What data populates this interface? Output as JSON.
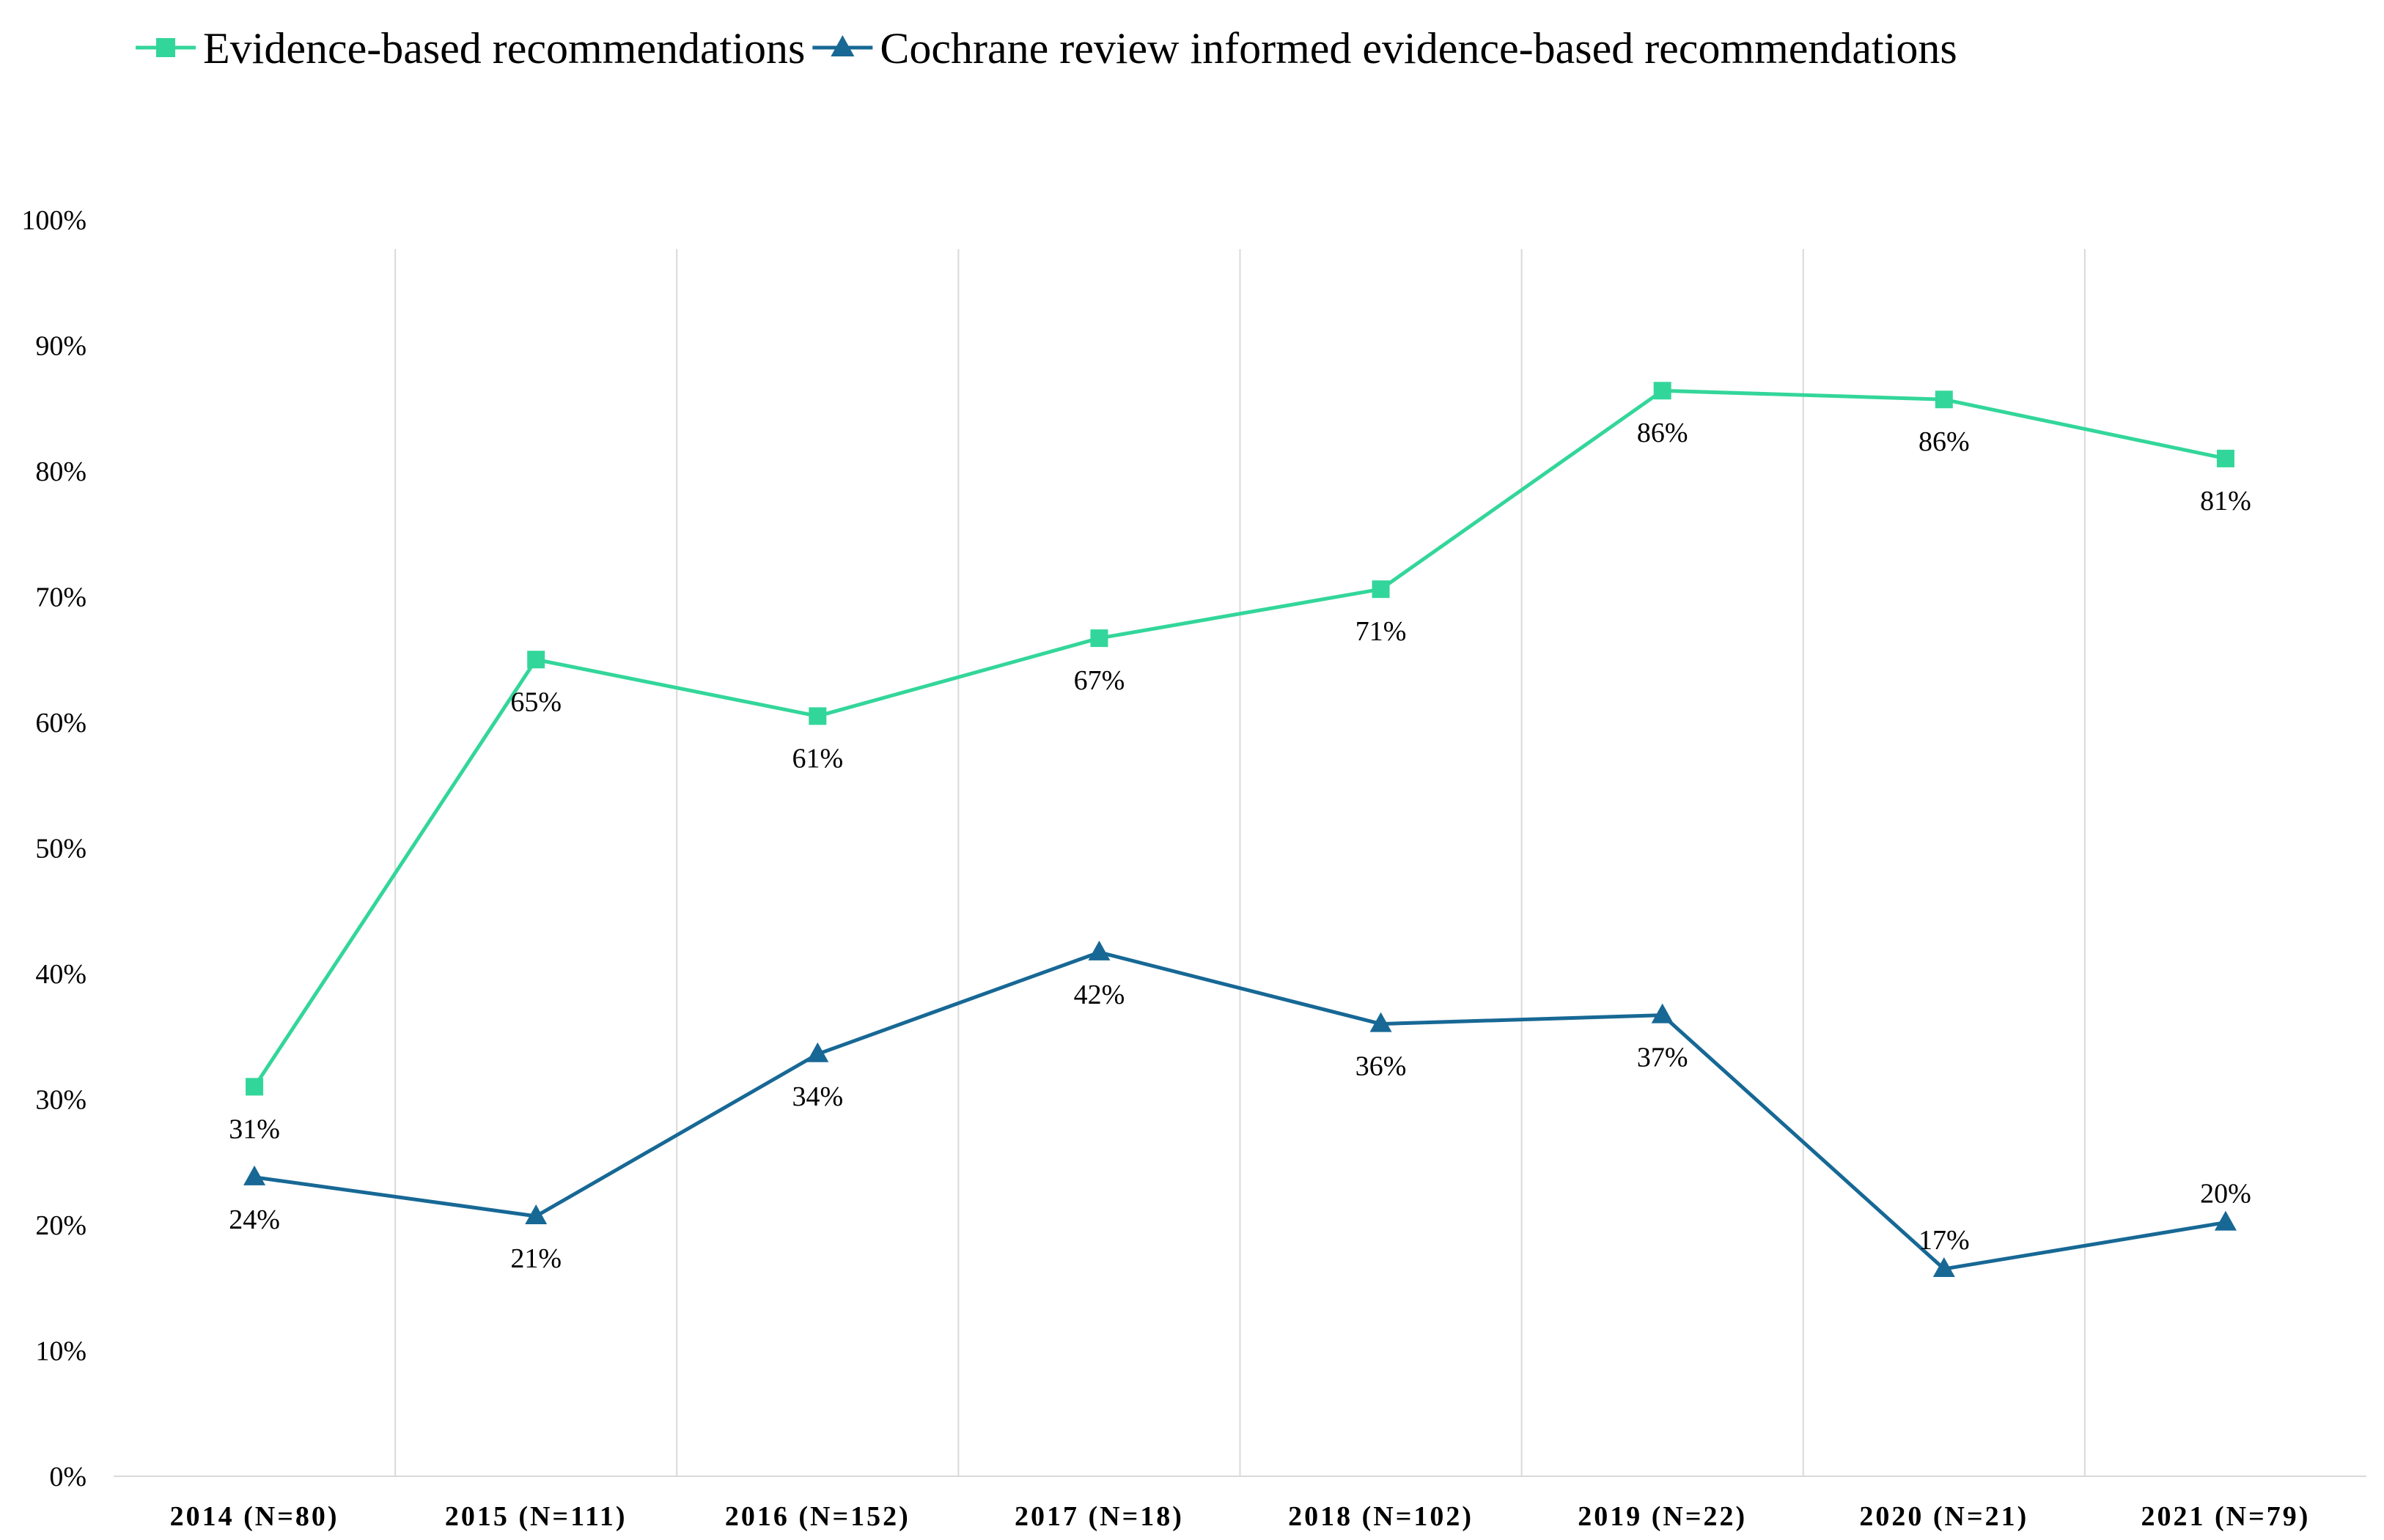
{
  "chart_data": {
    "type": "line",
    "title": "",
    "xlabel": "",
    "ylabel": "",
    "categories": [
      "2014 (N=80)",
      "2015 (N=111)",
      "2016 (N=152)",
      "2017 (N=18)",
      "2018 (N=102)",
      "2019 (N=22)",
      "2020 (N=21)",
      "2021 (N=79)"
    ],
    "ylim": [
      0,
      100
    ],
    "yticks": [
      0,
      10,
      20,
      30,
      40,
      50,
      60,
      70,
      80,
      90,
      100
    ],
    "ytick_labels": [
      "0%",
      "10%",
      "20%",
      "30%",
      "40%",
      "50%",
      "60%",
      "70%",
      "80%",
      "90%",
      "100%"
    ],
    "grid": "vertical",
    "legend_position": "top",
    "series": [
      {
        "name": "Evidence-based recommendations",
        "color": "#33d69a",
        "marker": "square",
        "values": [
          31,
          65,
          60.5,
          66.7,
          70.6,
          86.4,
          85.7,
          81
        ],
        "labels": [
          "31%",
          "65%",
          "61%",
          "67%",
          "71%",
          "86%",
          "86%",
          "81%"
        ],
        "label_positions": [
          "below",
          "below",
          "below",
          "below",
          "below",
          "below",
          "below",
          "below"
        ]
      },
      {
        "name": "Cochrane review informed evidence-based recommendations",
        "color": "#176895",
        "marker": "triangle",
        "values": [
          23.8,
          20.7,
          33.6,
          41.7,
          36,
          36.7,
          16.5,
          20.2
        ],
        "labels": [
          "24%",
          "21%",
          "34%",
          "42%",
          "36%",
          "37%",
          "17%",
          "20%"
        ],
        "label_positions": [
          "below",
          "below",
          "below",
          "below",
          "below",
          "below",
          "above",
          "above"
        ]
      }
    ]
  }
}
